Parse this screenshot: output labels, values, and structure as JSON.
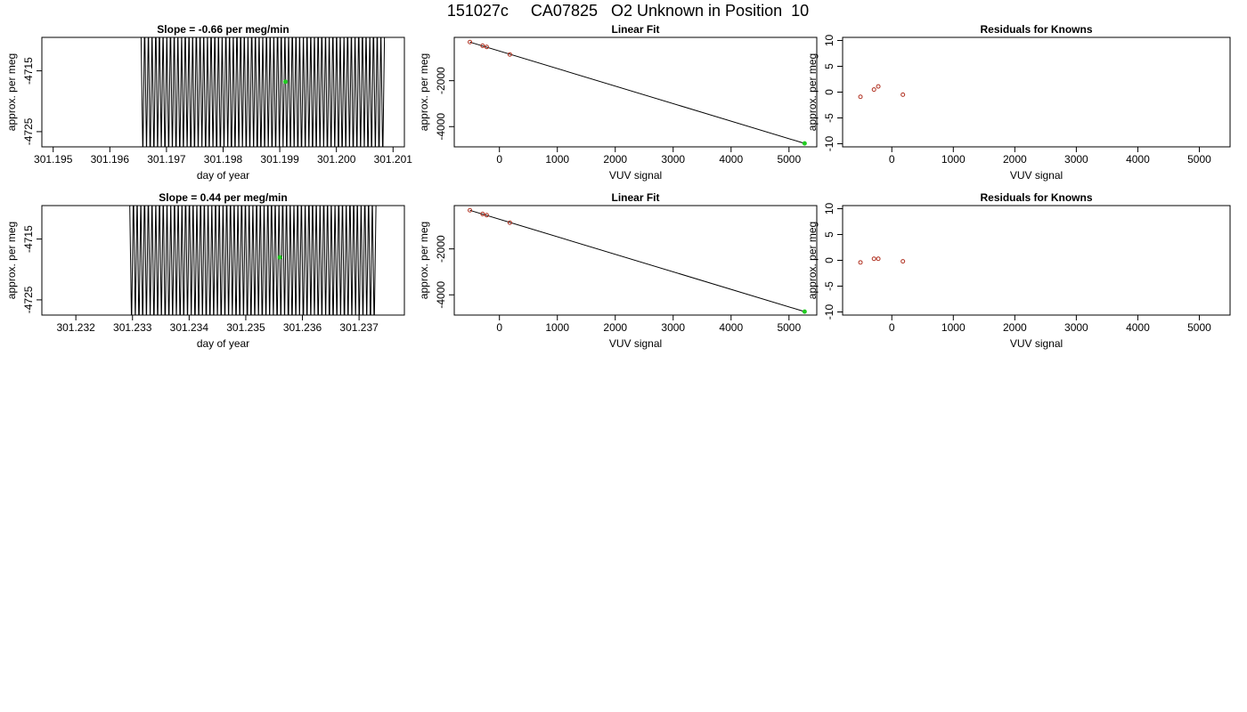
{
  "page": {
    "title": "151027c     CA07825   O2 Unknown in Position  10"
  },
  "chart_data": [
    {
      "id": "p1",
      "type": "line",
      "title": "Slope =  -0.66  per meg/min",
      "xlabel": "day of year",
      "ylabel": "approx. per meg",
      "xlim": [
        301.1948,
        301.2012
      ],
      "ylim": [
        -4727.5,
        -4709.5
      ],
      "xticks": [
        "301.195",
        "301.196",
        "301.197",
        "301.198",
        "301.199",
        "301.200",
        "301.201"
      ],
      "xtick_values": [
        301.195,
        301.196,
        301.197,
        301.198,
        301.199,
        301.2,
        301.201
      ],
      "yticks": [
        "-4715",
        "-4725"
      ],
      "ytick_values": [
        -4715,
        -4725
      ],
      "trace": {
        "x_start": 301.19655,
        "x_end": 301.20085,
        "cycles": 66,
        "y_center": -4718.5,
        "amplitude": 11
      },
      "marker": {
        "x": 301.1991,
        "y": -4716.8,
        "color": "#22cc22"
      }
    },
    {
      "id": "p2",
      "type": "scatter",
      "title": "Linear Fit",
      "xlabel": "VUV signal",
      "ylabel": "approx. per meg",
      "xlim": [
        -780,
        5480
      ],
      "ylim": [
        -4880,
        -115
      ],
      "xticks": [
        "0",
        "1000",
        "2000",
        "3000",
        "4000",
        "5000"
      ],
      "xtick_values": [
        0,
        1000,
        2000,
        3000,
        4000,
        5000
      ],
      "yticks": [
        "-2000",
        "-4000"
      ],
      "ytick_values": [
        -2000,
        -4000
      ],
      "points": [
        {
          "x": -510,
          "y": -320
        },
        {
          "x": -290,
          "y": -480
        },
        {
          "x": -220,
          "y": -530
        },
        {
          "x": 180,
          "y": -860
        }
      ],
      "point_color": "#b03020",
      "fit_line": {
        "x": [
          -510,
          5270
        ],
        "y": [
          -320,
          -4730
        ]
      },
      "unknown": {
        "x": 5270,
        "y": -4730,
        "color": "#22cc22"
      }
    },
    {
      "id": "p3",
      "type": "scatter",
      "title": "Residuals for Knowns",
      "xlabel": "VUV signal",
      "ylabel": "approx. per meg",
      "xlim": [
        -800,
        5500
      ],
      "ylim": [
        -10.6,
        10.6
      ],
      "xticks": [
        "0",
        "1000",
        "2000",
        "3000",
        "4000",
        "5000"
      ],
      "xtick_values": [
        0,
        1000,
        2000,
        3000,
        4000,
        5000
      ],
      "yticks": [
        "-10",
        "-5",
        "0",
        "5",
        "10"
      ],
      "ytick_values": [
        -10,
        -5,
        0,
        5,
        10
      ],
      "points": [
        {
          "x": -510,
          "y": -0.9
        },
        {
          "x": -290,
          "y": 0.5
        },
        {
          "x": -220,
          "y": 1.1
        },
        {
          "x": 180,
          "y": -0.5
        }
      ],
      "point_color": "#b03020"
    },
    {
      "id": "p4",
      "type": "line",
      "title": "Slope =  0.44  per meg/min",
      "xlabel": "day of year",
      "ylabel": "approx. per meg",
      "xlim": [
        301.2314,
        301.2378
      ],
      "ylim": [
        -4727.5,
        -4709.5
      ],
      "xticks": [
        "301.232",
        "301.233",
        "301.234",
        "301.235",
        "301.236",
        "301.237"
      ],
      "xtick_values": [
        301.232,
        301.233,
        301.234,
        301.235,
        301.236,
        301.237
      ],
      "yticks": [
        "-4715",
        "-4725"
      ],
      "ytick_values": [
        -4715,
        -4725
      ],
      "trace": {
        "x_start": 301.23295,
        "x_end": 301.2373,
        "cycles": 66,
        "y_center": -4718.5,
        "amplitude": 11
      },
      "marker": {
        "x": 301.2356,
        "y": -4718.0,
        "color": "#22cc22"
      }
    },
    {
      "id": "p5",
      "type": "scatter",
      "title": "Linear Fit",
      "xlabel": "VUV signal",
      "ylabel": "approx. per meg",
      "xlim": [
        -780,
        5480
      ],
      "ylim": [
        -4880,
        -115
      ],
      "xticks": [
        "0",
        "1000",
        "2000",
        "3000",
        "4000",
        "5000"
      ],
      "xtick_values": [
        0,
        1000,
        2000,
        3000,
        4000,
        5000
      ],
      "yticks": [
        "-2000",
        "-4000"
      ],
      "ytick_values": [
        -2000,
        -4000
      ],
      "points": [
        {
          "x": -510,
          "y": -320
        },
        {
          "x": -290,
          "y": -480
        },
        {
          "x": -220,
          "y": -530
        },
        {
          "x": 180,
          "y": -860
        }
      ],
      "point_color": "#b03020",
      "fit_line": {
        "x": [
          -510,
          5270
        ],
        "y": [
          -320,
          -4730
        ]
      },
      "unknown": {
        "x": 5270,
        "y": -4730,
        "color": "#22cc22"
      }
    },
    {
      "id": "p6",
      "type": "scatter",
      "title": "Residuals for Knowns",
      "xlabel": "VUV signal",
      "ylabel": "approx. per meg",
      "xlim": [
        -800,
        5500
      ],
      "ylim": [
        -10.6,
        10.6
      ],
      "xticks": [
        "0",
        "1000",
        "2000",
        "3000",
        "4000",
        "5000"
      ],
      "xtick_values": [
        0,
        1000,
        2000,
        3000,
        4000,
        5000
      ],
      "yticks": [
        "-10",
        "-5",
        "0",
        "5",
        "10"
      ],
      "ytick_values": [
        -10,
        -5,
        0,
        5,
        10
      ],
      "points": [
        {
          "x": -510,
          "y": -0.4
        },
        {
          "x": -290,
          "y": 0.3
        },
        {
          "x": -220,
          "y": 0.3
        },
        {
          "x": 180,
          "y": -0.2
        }
      ],
      "point_color": "#b03020"
    }
  ]
}
